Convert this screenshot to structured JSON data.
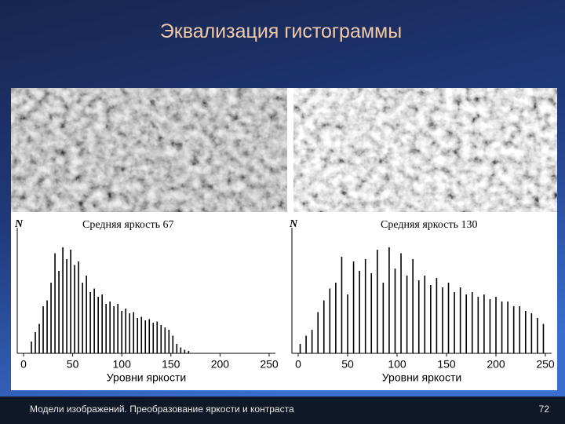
{
  "header": {
    "title": "Эквализация гистограммы"
  },
  "footer": {
    "text": "Модели изображений. Преобразование яркости и контраста",
    "page": "72"
  },
  "chart_data": [
    {
      "type": "bar",
      "y_label": "N",
      "subtitle": "Средняя яркость 67",
      "x_label": "Уровни яркости",
      "x": [
        8,
        12,
        16,
        20,
        24,
        28,
        32,
        36,
        40,
        44,
        48,
        52,
        56,
        60,
        64,
        68,
        72,
        76,
        80,
        84,
        88,
        92,
        96,
        100,
        104,
        108,
        112,
        116,
        120,
        124,
        128,
        132,
        136,
        140,
        144,
        148,
        152,
        156,
        160,
        164,
        168
      ],
      "values": [
        10,
        18,
        25,
        40,
        45,
        60,
        85,
        70,
        90,
        80,
        88,
        75,
        78,
        60,
        66,
        52,
        55,
        48,
        50,
        42,
        44,
        40,
        42,
        36,
        38,
        34,
        35,
        30,
        31,
        28,
        29,
        26,
        27,
        24,
        22,
        20,
        15,
        8,
        5,
        3,
        2
      ],
      "xlim": [
        0,
        250
      ],
      "xticks": [
        0,
        50,
        100,
        150,
        200,
        250
      ],
      "ylim": [
        0,
        100
      ],
      "color": "#000000"
    },
    {
      "type": "bar",
      "y_label": "N",
      "subtitle": "Средняя яркость 130",
      "x_label": "Уровни яркости",
      "x": [
        2,
        8,
        14,
        20,
        26,
        32,
        38,
        44,
        50,
        56,
        62,
        68,
        74,
        80,
        86,
        92,
        98,
        104,
        110,
        116,
        122,
        128,
        134,
        140,
        146,
        152,
        158,
        164,
        170,
        176,
        182,
        188,
        194,
        200,
        206,
        212,
        218,
        224,
        230,
        236,
        242,
        248
      ],
      "values": [
        8,
        15,
        20,
        35,
        45,
        55,
        60,
        82,
        50,
        78,
        70,
        80,
        68,
        88,
        60,
        90,
        72,
        85,
        66,
        80,
        62,
        66,
        58,
        64,
        56,
        60,
        52,
        56,
        50,
        52,
        48,
        50,
        46,
        48,
        44,
        44,
        40,
        40,
        36,
        34,
        30,
        25
      ],
      "xlim": [
        0,
        250
      ],
      "xticks": [
        0,
        50,
        100,
        150,
        200,
        250
      ],
      "ylim": [
        0,
        100
      ],
      "color": "#000000"
    }
  ]
}
